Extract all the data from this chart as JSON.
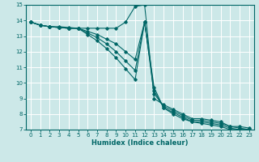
{
  "xlabel": "Humidex (Indice chaleur)",
  "ylabel": "",
  "xlim": [
    -0.5,
    23.5
  ],
  "ylim": [
    7,
    15
  ],
  "xticks": [
    0,
    1,
    2,
    3,
    4,
    5,
    6,
    7,
    8,
    9,
    10,
    11,
    12,
    13,
    14,
    15,
    16,
    17,
    18,
    19,
    20,
    21,
    22,
    23
  ],
  "yticks": [
    7,
    8,
    9,
    10,
    11,
    12,
    13,
    14,
    15
  ],
  "bg_color": "#cce8e8",
  "grid_color": "#ffffff",
  "line_color": "#006666",
  "lines": [
    {
      "x": [
        0,
        1,
        2,
        3,
        4,
        5,
        6,
        7,
        8,
        9,
        10,
        11,
        12,
        13,
        14,
        15,
        16,
        17,
        18,
        19,
        20,
        21,
        22,
        23
      ],
      "y": [
        13.9,
        13.7,
        13.6,
        13.6,
        13.55,
        13.5,
        13.5,
        13.5,
        13.5,
        13.5,
        13.9,
        14.9,
        15.0,
        9.0,
        8.6,
        8.3,
        8.0,
        7.7,
        7.7,
        7.6,
        7.5,
        7.2,
        7.2,
        7.1
      ]
    },
    {
      "x": [
        0,
        1,
        2,
        3,
        4,
        5,
        6,
        7,
        8,
        9,
        10,
        11,
        12,
        13,
        14,
        15,
        16,
        17,
        18,
        19,
        20,
        21,
        22,
        23
      ],
      "y": [
        13.9,
        13.7,
        13.6,
        13.55,
        13.5,
        13.5,
        13.3,
        13.1,
        12.8,
        12.5,
        12.0,
        11.5,
        13.9,
        9.3,
        8.5,
        8.2,
        7.9,
        7.6,
        7.6,
        7.5,
        7.4,
        7.2,
        7.1,
        7.0
      ]
    },
    {
      "x": [
        0,
        1,
        2,
        3,
        4,
        5,
        6,
        7,
        8,
        9,
        10,
        11,
        12,
        13,
        14,
        15,
        16,
        17,
        18,
        19,
        20,
        21,
        22,
        23
      ],
      "y": [
        13.9,
        13.7,
        13.6,
        13.55,
        13.5,
        13.5,
        13.2,
        12.9,
        12.5,
        12.0,
        11.4,
        10.8,
        13.9,
        9.5,
        8.4,
        8.1,
        7.8,
        7.5,
        7.5,
        7.4,
        7.3,
        7.1,
        7.0,
        7.0
      ]
    },
    {
      "x": [
        0,
        1,
        2,
        3,
        4,
        5,
        6,
        7,
        8,
        9,
        10,
        11,
        12,
        13,
        14,
        15,
        16,
        17,
        18,
        19,
        20,
        21,
        22,
        23
      ],
      "y": [
        13.9,
        13.7,
        13.6,
        13.55,
        13.5,
        13.5,
        13.1,
        12.7,
        12.2,
        11.6,
        10.9,
        10.2,
        13.9,
        9.7,
        8.4,
        8.0,
        7.7,
        7.5,
        7.4,
        7.3,
        7.2,
        7.0,
        7.0,
        7.0
      ]
    }
  ]
}
